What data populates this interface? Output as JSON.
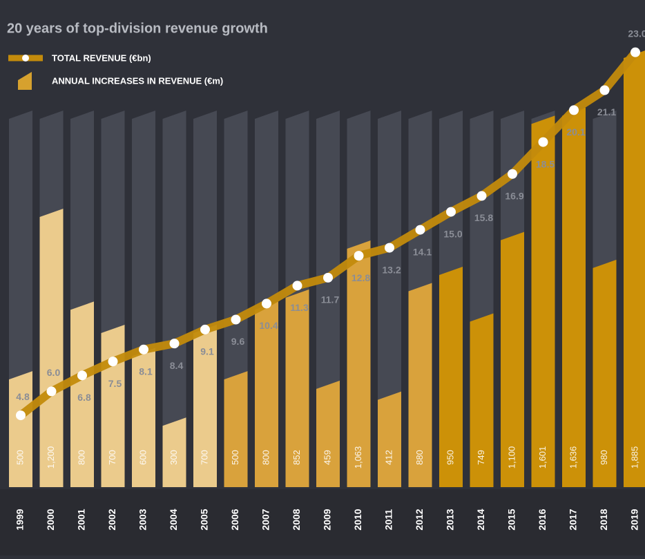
{
  "chart_data": {
    "type": "bar-line",
    "title": "20 years of top-division revenue growth",
    "categories": [
      "1999",
      "2000",
      "2001",
      "2002",
      "2003",
      "2004",
      "2005",
      "2006",
      "2007",
      "2008",
      "2009",
      "2010",
      "2011",
      "2012",
      "2013",
      "2014",
      "2015",
      "2016",
      "2017",
      "2018",
      "2019"
    ],
    "ylim": [
      0,
      1900
    ],
    "y2lim": [
      1.2,
      23.3
    ],
    "series": [
      {
        "name": "ANNUAL INCREASES IN REVENUE (€m)",
        "color": "#d6a12e",
        "bar_colors": [
          "#ebcb8c",
          "#ebcb8c",
          "#ebcb8c",
          "#ebcb8c",
          "#ebcb8c",
          "#ebcb8c",
          "#ebcb8c",
          "#d9a23c",
          "#d9a23c",
          "#d9a23c",
          "#d9a23c",
          "#d9a23c",
          "#d9a23c",
          "#d9a23c",
          "#cc9108",
          "#cc9108",
          "#cc9108",
          "#cc9108",
          "#cc9108",
          "#cc9108",
          "#cc9108"
        ],
        "values": [
          500,
          1200,
          800,
          700,
          600,
          300,
          700,
          500,
          800,
          852,
          459,
          1063,
          412,
          880,
          950,
          749,
          1100,
          1601,
          1636,
          980,
          1885
        ],
        "value_labels": [
          "500",
          "1,200",
          "800",
          "700",
          "600",
          "300",
          "700",
          "500",
          "800",
          "852",
          "459",
          "1,063",
          "412",
          "880",
          "950",
          "749",
          "1,100",
          "1,601",
          "1,636",
          "980",
          "1,885"
        ]
      },
      {
        "name": "TOTAL REVENUE (€bn)",
        "color": "#c38b0c",
        "axis": "y2",
        "values": [
          4.8,
          6.0,
          6.8,
          7.5,
          8.1,
          8.4,
          9.1,
          9.6,
          10.4,
          11.3,
          11.7,
          12.8,
          13.2,
          14.1,
          15.0,
          15.8,
          16.9,
          18.5,
          20.1,
          21.1,
          23.0
        ],
        "value_labels": [
          "4.8",
          "6.0",
          "6.8",
          "7.5",
          "8.1",
          "8.4",
          "9.1",
          "9.6",
          "10.4",
          "11.3",
          "11.7",
          "12.8",
          "13.2",
          "14.1",
          "15.0",
          "15.8",
          "16.9",
          "18.5",
          "20.1",
          "21.1",
          "23.0"
        ]
      }
    ]
  }
}
